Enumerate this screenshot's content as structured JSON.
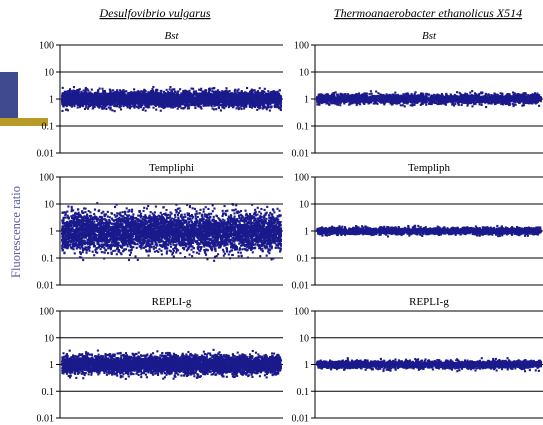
{
  "figure": {
    "ylabel": "Fluorescence ratio",
    "columns": [
      {
        "organism": "Desulfovibrio vulgarus"
      },
      {
        "organism": "Thermoanaerobacter ethanolicus X514"
      }
    ]
  },
  "colors": {
    "points": "#1a1a8c",
    "axis": "#000000",
    "ylabel": "#5c5c9e",
    "deco_blue": "#3f4a8f",
    "deco_gold": "#b79a27"
  },
  "chart_data": [
    {
      "type": "scatter",
      "title": "Bst",
      "column": 0,
      "row": 0,
      "scale": "log",
      "ylim": [
        0.01,
        100
      ],
      "y_ticks": [
        "100",
        "10",
        "1",
        "0.1",
        "0.01"
      ],
      "grid": true,
      "n_points": 5000,
      "median": 1.0,
      "spread_log10": 0.14,
      "range_log10": 0.45
    },
    {
      "type": "scatter",
      "title": "Templiphi",
      "column": 0,
      "row": 1,
      "scale": "log",
      "ylim": [
        0.01,
        100
      ],
      "y_ticks": [
        "100",
        "10",
        "1",
        "0.1",
        "0.01"
      ],
      "grid": true,
      "n_points": 5000,
      "median": 0.9,
      "spread_log10": 0.35,
      "range_log10": 1.1
    },
    {
      "type": "scatter",
      "title": "REPLI-g",
      "column": 0,
      "row": 2,
      "scale": "log",
      "ylim": [
        0.01,
        100
      ],
      "y_ticks": [
        "100",
        "10",
        "1",
        "0.1",
        "0.01"
      ],
      "grid": true,
      "n_points": 5000,
      "median": 1.0,
      "spread_log10": 0.17,
      "range_log10": 0.55
    },
    {
      "type": "scatter",
      "title": "Bst",
      "column": 1,
      "row": 0,
      "scale": "log",
      "ylim": [
        0.01,
        100
      ],
      "y_ticks": [
        "100",
        "10",
        "1",
        "0.1",
        "0.01"
      ],
      "grid": true,
      "n_points": 2500,
      "median": 1.0,
      "spread_log10": 0.09,
      "range_log10": 0.3
    },
    {
      "type": "scatter",
      "title": "Templiph",
      "column": 1,
      "row": 1,
      "scale": "log",
      "ylim": [
        0.01,
        100
      ],
      "y_ticks": [
        "100",
        "10",
        "1",
        "0.1",
        "0.01"
      ],
      "grid": true,
      "n_points": 2500,
      "median": 1.0,
      "spread_log10": 0.06,
      "range_log10": 0.2
    },
    {
      "type": "scatter",
      "title": "REPLI-g",
      "column": 1,
      "row": 2,
      "scale": "log",
      "ylim": [
        0.01,
        100
      ],
      "y_ticks": [
        "100",
        "10",
        "1",
        "0.1",
        "0.01"
      ],
      "grid": true,
      "n_points": 2500,
      "median": 1.0,
      "spread_log10": 0.07,
      "range_log10": 0.25
    }
  ]
}
